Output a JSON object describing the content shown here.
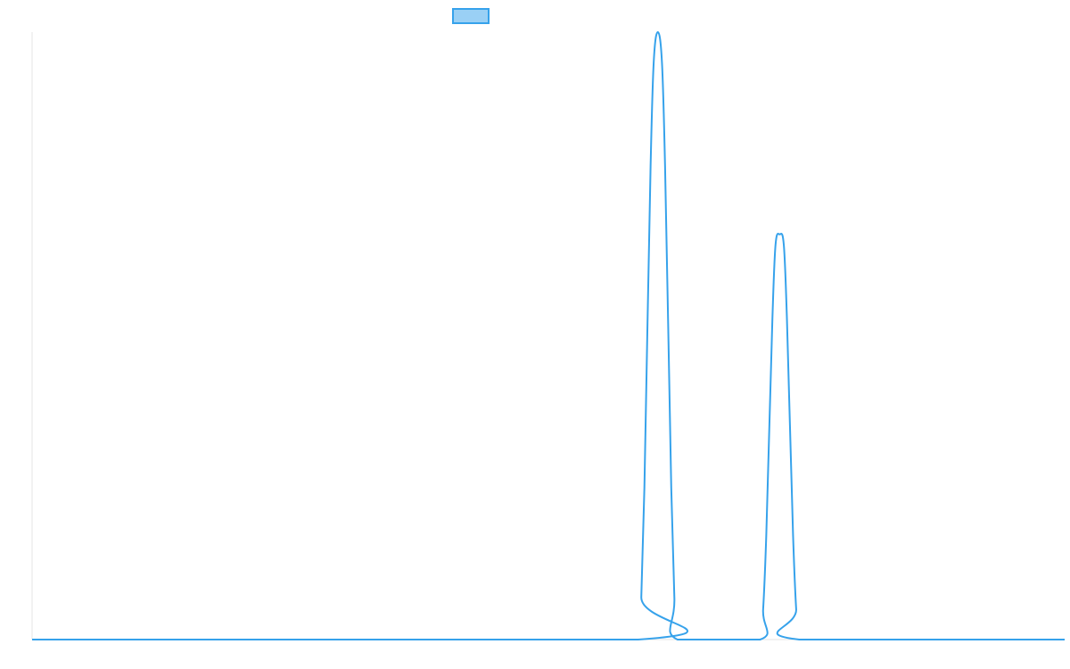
{
  "chart_data": {
    "type": "line",
    "title": "",
    "xlabel": "",
    "ylabel": "",
    "x_range": [
      0,
      1000
    ],
    "ylim": [
      0,
      1
    ],
    "grid": false,
    "legend": {
      "position": "top-center",
      "entries": [
        {
          "label": "",
          "color": "#36a2eb",
          "fill": "#9ad0f5"
        }
      ]
    },
    "series": [
      {
        "color": "#36a2eb",
        "points": [
          [
            0,
            0
          ],
          [
            587,
            0
          ],
          [
            590,
            0.07
          ],
          [
            593,
            0.25
          ],
          [
            596,
            0.52
          ],
          [
            599,
            0.78
          ],
          [
            602,
            0.95
          ],
          [
            606,
            1.0
          ],
          [
            610,
            0.95
          ],
          [
            613,
            0.78
          ],
          [
            616,
            0.52
          ],
          [
            619,
            0.25
          ],
          [
            622,
            0.07
          ],
          [
            625,
            0
          ],
          [
            705,
            0
          ],
          [
            708,
            0.05
          ],
          [
            711,
            0.17
          ],
          [
            714,
            0.35
          ],
          [
            717,
            0.53
          ],
          [
            720,
            0.65
          ],
          [
            724,
            0.667
          ],
          [
            728,
            0.65
          ],
          [
            731,
            0.53
          ],
          [
            734,
            0.35
          ],
          [
            737,
            0.17
          ],
          [
            740,
            0.05
          ],
          [
            743,
            0
          ],
          [
            1000,
            0
          ]
        ]
      }
    ]
  }
}
